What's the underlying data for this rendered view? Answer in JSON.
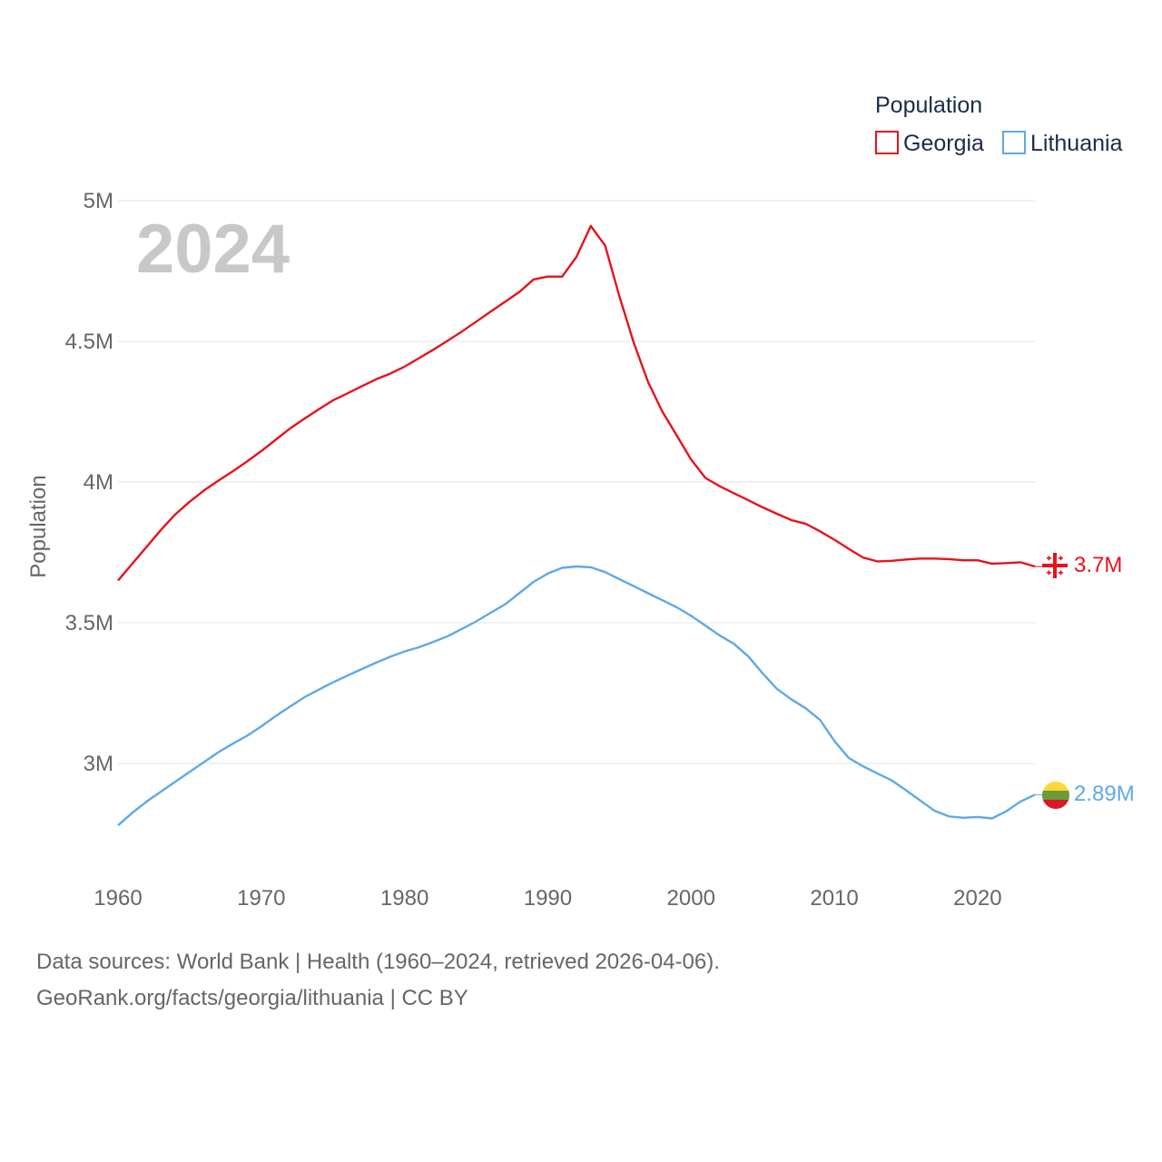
{
  "chart_data": {
    "type": "line",
    "title": "",
    "xlabel": "",
    "ylabel": "Population",
    "big_year_label": "2024",
    "legend_title": "Population",
    "xlim": [
      1960,
      2024
    ],
    "ylim": [
      2700000,
      5000000
    ],
    "x_ticks": [
      1960,
      1970,
      1980,
      1990,
      2000,
      2010,
      2020
    ],
    "x_tick_labels": [
      "1960",
      "1970",
      "1980",
      "1990",
      "2000",
      "2010",
      "2020"
    ],
    "y_ticks": [
      3000000,
      3500000,
      4000000,
      4500000,
      5000000
    ],
    "y_tick_labels": [
      "3M",
      "3.5M",
      "4M",
      "4.5M",
      "5M"
    ],
    "x": [
      1960,
      1961,
      1962,
      1963,
      1964,
      1965,
      1966,
      1967,
      1968,
      1969,
      1970,
      1971,
      1972,
      1973,
      1974,
      1975,
      1976,
      1977,
      1978,
      1979,
      1980,
      1981,
      1982,
      1983,
      1984,
      1985,
      1986,
      1987,
      1988,
      1989,
      1990,
      1991,
      1992,
      1993,
      1994,
      1995,
      1996,
      1997,
      1998,
      1999,
      2000,
      2001,
      2002,
      2003,
      2004,
      2005,
      2006,
      2007,
      2008,
      2009,
      2010,
      2011,
      2012,
      2013,
      2014,
      2015,
      2016,
      2017,
      2018,
      2019,
      2020,
      2021,
      2022,
      2023,
      2024
    ],
    "series": [
      {
        "name": "Georgia",
        "color": "#e8121b",
        "end_label": "3.7M",
        "icon": "georgia-flag-icon",
        "values": [
          3650000,
          3710000,
          3770000,
          3830000,
          3885000,
          3930000,
          3970000,
          4005000,
          4038000,
          4073000,
          4110000,
          4150000,
          4190000,
          4225000,
          4258000,
          4290000,
          4315000,
          4340000,
          4365000,
          4385000,
          4410000,
          4440000,
          4470000,
          4502000,
          4535000,
          4570000,
          4605000,
          4640000,
          4675000,
          4720000,
          4730000,
          4730000,
          4800000,
          4910000,
          4840000,
          4660000,
          4495000,
          4355000,
          4250000,
          4165000,
          4080000,
          4015000,
          3985000,
          3960000,
          3935000,
          3910000,
          3887000,
          3865000,
          3852000,
          3825000,
          3795000,
          3763000,
          3732000,
          3718000,
          3720000,
          3725000,
          3728000,
          3728000,
          3726000,
          3722000,
          3722000,
          3710000,
          3712000,
          3715000,
          3700000
        ]
      },
      {
        "name": "Lithuania",
        "color": "#5da9e8",
        "end_label": "2.89M",
        "icon": "lithuania-flag-icon",
        "values": [
          2780000,
          2825000,
          2865000,
          2900000,
          2935000,
          2970000,
          3005000,
          3040000,
          3070000,
          3098000,
          3132000,
          3168000,
          3202000,
          3235000,
          3262000,
          3288000,
          3312000,
          3335000,
          3358000,
          3379000,
          3398000,
          3413000,
          3432000,
          3452000,
          3478000,
          3505000,
          3535000,
          3565000,
          3605000,
          3645000,
          3675000,
          3695000,
          3700000,
          3697000,
          3680000,
          3655000,
          3630000,
          3605000,
          3580000,
          3555000,
          3525000,
          3490000,
          3455000,
          3425000,
          3380000,
          3320000,
          3265000,
          3228000,
          3196000,
          3155000,
          3080000,
          3020000,
          2990000,
          2965000,
          2940000,
          2905000,
          2868000,
          2832000,
          2812000,
          2807000,
          2810000,
          2805000,
          2830000,
          2865000,
          2889000
        ]
      }
    ]
  },
  "footer": {
    "line1": "Data sources: World Bank | Health (1960–2024, retrieved 2026-04-06).",
    "line2": "GeoRank.org/facts/georgia/lithuania | CC BY"
  }
}
